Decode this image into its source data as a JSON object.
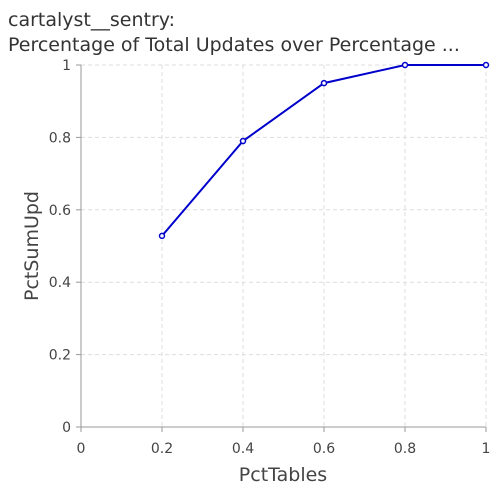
{
  "chart_data": {
    "type": "line",
    "title": "cartalyst__sentry:",
    "subtitle": "Percentage of Total Updates over Percentage ...",
    "xlabel": "PctTables",
    "ylabel": "PctSumUpd",
    "xlim": [
      0,
      1
    ],
    "ylim": [
      0,
      1
    ],
    "x_ticks": [
      "0",
      "0.2",
      "0.4",
      "0.6",
      "0.8",
      "1"
    ],
    "y_ticks": [
      "0",
      "0.2",
      "0.4",
      "0.6",
      "0.8",
      "1"
    ],
    "grid": true,
    "series": [
      {
        "x": [
          0.2,
          0.4,
          0.6,
          0.8,
          1.0
        ],
        "values": [
          0.528,
          0.79,
          0.95,
          1.0,
          1.0
        ],
        "color": "#0000cc"
      }
    ]
  }
}
